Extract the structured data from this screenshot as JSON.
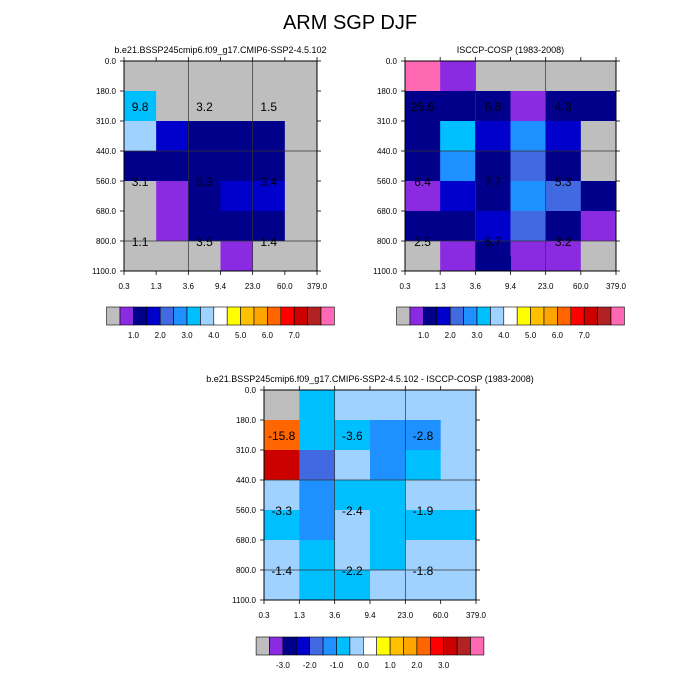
{
  "figure": {
    "title": "ARM SGP DJF"
  },
  "colors": {
    "gray": "#bebebe",
    "palette": [
      "#bebebe",
      "#8a2be2",
      "#00008b",
      "#0000cd",
      "#4169e1",
      "#1e90ff",
      "#00bfff",
      "#a0d2ff",
      "#ffffff",
      "#ffff00",
      "#ffc000",
      "#ffa500",
      "#ff6600",
      "#ff0000",
      "#cd0000",
      "#b22222",
      "#ff69b4"
    ]
  },
  "chart_data": [
    {
      "type": "heatmap",
      "title": "b.e21.BSSP245cmip6.f09_g17.CMIP6-SSP2-4.5.102",
      "x_ticks": [
        "0.3",
        "1.3",
        "3.6",
        "9.4",
        "23.0",
        "60.0",
        "379.0"
      ],
      "y_ticks": [
        "0.0",
        "180.0",
        "310.0",
        "440.0",
        "560.0",
        "680.0",
        "800.0",
        "1100.0"
      ],
      "cells": [
        [
          0,
          0,
          0,
          0,
          0,
          0
        ],
        [
          6,
          0,
          0,
          0,
          0,
          0
        ],
        [
          7,
          3,
          2,
          2,
          2,
          0
        ],
        [
          2,
          2,
          2,
          2,
          2,
          0
        ],
        [
          0,
          1,
          2,
          3,
          3,
          0
        ],
        [
          0,
          1,
          2,
          2,
          2,
          0
        ],
        [
          0,
          0,
          0,
          1,
          0,
          0
        ]
      ],
      "annotations": [
        {
          "col": 0.5,
          "row": 1.5,
          "label": "9.8"
        },
        {
          "col": 2.5,
          "row": 1.5,
          "label": "3.2"
        },
        {
          "col": 4.5,
          "row": 1.5,
          "label": "1.5"
        },
        {
          "col": 0.5,
          "row": 4.0,
          "label": "3.1"
        },
        {
          "col": 2.5,
          "row": 4.0,
          "label": "5.3"
        },
        {
          "col": 4.5,
          "row": 4.0,
          "label": "3.4"
        },
        {
          "col": 0.5,
          "row": 6.0,
          "label": "1.1"
        },
        {
          "col": 2.5,
          "row": 6.0,
          "label": "3.5"
        },
        {
          "col": 4.5,
          "row": 6.0,
          "label": "1.4"
        }
      ],
      "colorbar_labels": [
        "1.0",
        "2.0",
        "3.0",
        "4.0",
        "5.0",
        "6.0",
        "7.0"
      ]
    },
    {
      "type": "heatmap",
      "title": "ISCCP-COSP (1983-2008)",
      "x_ticks": [
        "0.3",
        "1.3",
        "3.6",
        "9.4",
        "23.0",
        "60.0",
        "379.0"
      ],
      "y_ticks": [
        "0.0",
        "180.0",
        "310.0",
        "440.0",
        "560.0",
        "680.0",
        "800.0",
        "1100.0"
      ],
      "cells": [
        [
          16,
          1,
          0,
          0,
          0,
          0
        ],
        [
          2,
          2,
          2,
          1,
          2,
          2
        ],
        [
          2,
          6,
          3,
          5,
          3,
          0
        ],
        [
          2,
          5,
          2,
          4,
          2,
          0
        ],
        [
          1,
          3,
          2,
          5,
          4,
          2
        ],
        [
          2,
          2,
          3,
          4,
          2,
          1
        ],
        [
          0,
          1,
          2,
          1,
          1,
          0
        ]
      ],
      "extra_cells": [
        {
          "row": 6.5,
          "col": 2,
          "value": 2
        }
      ],
      "annotations": [
        {
          "col": 0.5,
          "row": 1.5,
          "label": "25.6"
        },
        {
          "col": 2.5,
          "row": 1.5,
          "label": "6.8"
        },
        {
          "col": 4.5,
          "row": 1.5,
          "label": "4.3"
        },
        {
          "col": 0.5,
          "row": 4.0,
          "label": "6.4"
        },
        {
          "col": 2.5,
          "row": 4.0,
          "label": "7.7"
        },
        {
          "col": 4.5,
          "row": 4.0,
          "label": "5.3"
        },
        {
          "col": 0.5,
          "row": 6.0,
          "label": "2.5"
        },
        {
          "col": 2.5,
          "row": 6.0,
          "label": "5.7"
        },
        {
          "col": 4.5,
          "row": 6.0,
          "label": "3.2"
        }
      ],
      "colorbar_labels": [
        "1.0",
        "2.0",
        "3.0",
        "4.0",
        "5.0",
        "6.0",
        "7.0"
      ]
    },
    {
      "type": "heatmap",
      "title": "b.e21.BSSP245cmip6.f09_g17.CMIP6-SSP2-4.5.102 - ISCCP-COSP (1983-2008)",
      "x_ticks": [
        "0.3",
        "1.3",
        "3.6",
        "9.4",
        "23.0",
        "60.0",
        "379.0"
      ],
      "y_ticks": [
        "0.0",
        "180.0",
        "310.0",
        "440.0",
        "560.0",
        "680.0",
        "800.0",
        "1100.0"
      ],
      "cells": [
        [
          0,
          6,
          7,
          7,
          7,
          7
        ],
        [
          12,
          6,
          6,
          5,
          5,
          7
        ],
        [
          14,
          4,
          7,
          5,
          6,
          7
        ],
        [
          7,
          5,
          6,
          6,
          7,
          7
        ],
        [
          6,
          5,
          7,
          6,
          6,
          6
        ],
        [
          7,
          6,
          7,
          6,
          7,
          7
        ],
        [
          7,
          6,
          6,
          7,
          7,
          7
        ]
      ],
      "annotations": [
        {
          "col": 0.5,
          "row": 1.5,
          "label": "-15.8"
        },
        {
          "col": 2.5,
          "row": 1.5,
          "label": "-3.6"
        },
        {
          "col": 4.5,
          "row": 1.5,
          "label": "-2.8"
        },
        {
          "col": 0.5,
          "row": 4.0,
          "label": "-3.3"
        },
        {
          "col": 2.5,
          "row": 4.0,
          "label": "-2.4"
        },
        {
          "col": 4.5,
          "row": 4.0,
          "label": "-1.9"
        },
        {
          "col": 0.5,
          "row": 6.0,
          "label": "-1.4"
        },
        {
          "col": 2.5,
          "row": 6.0,
          "label": "-2.2"
        },
        {
          "col": 4.5,
          "row": 6.0,
          "label": "-1.8"
        }
      ],
      "colorbar_labels": [
        "-3.0",
        "-2.0",
        "-1.0",
        "0.0",
        "1.0",
        "2.0",
        "3.0"
      ]
    }
  ]
}
